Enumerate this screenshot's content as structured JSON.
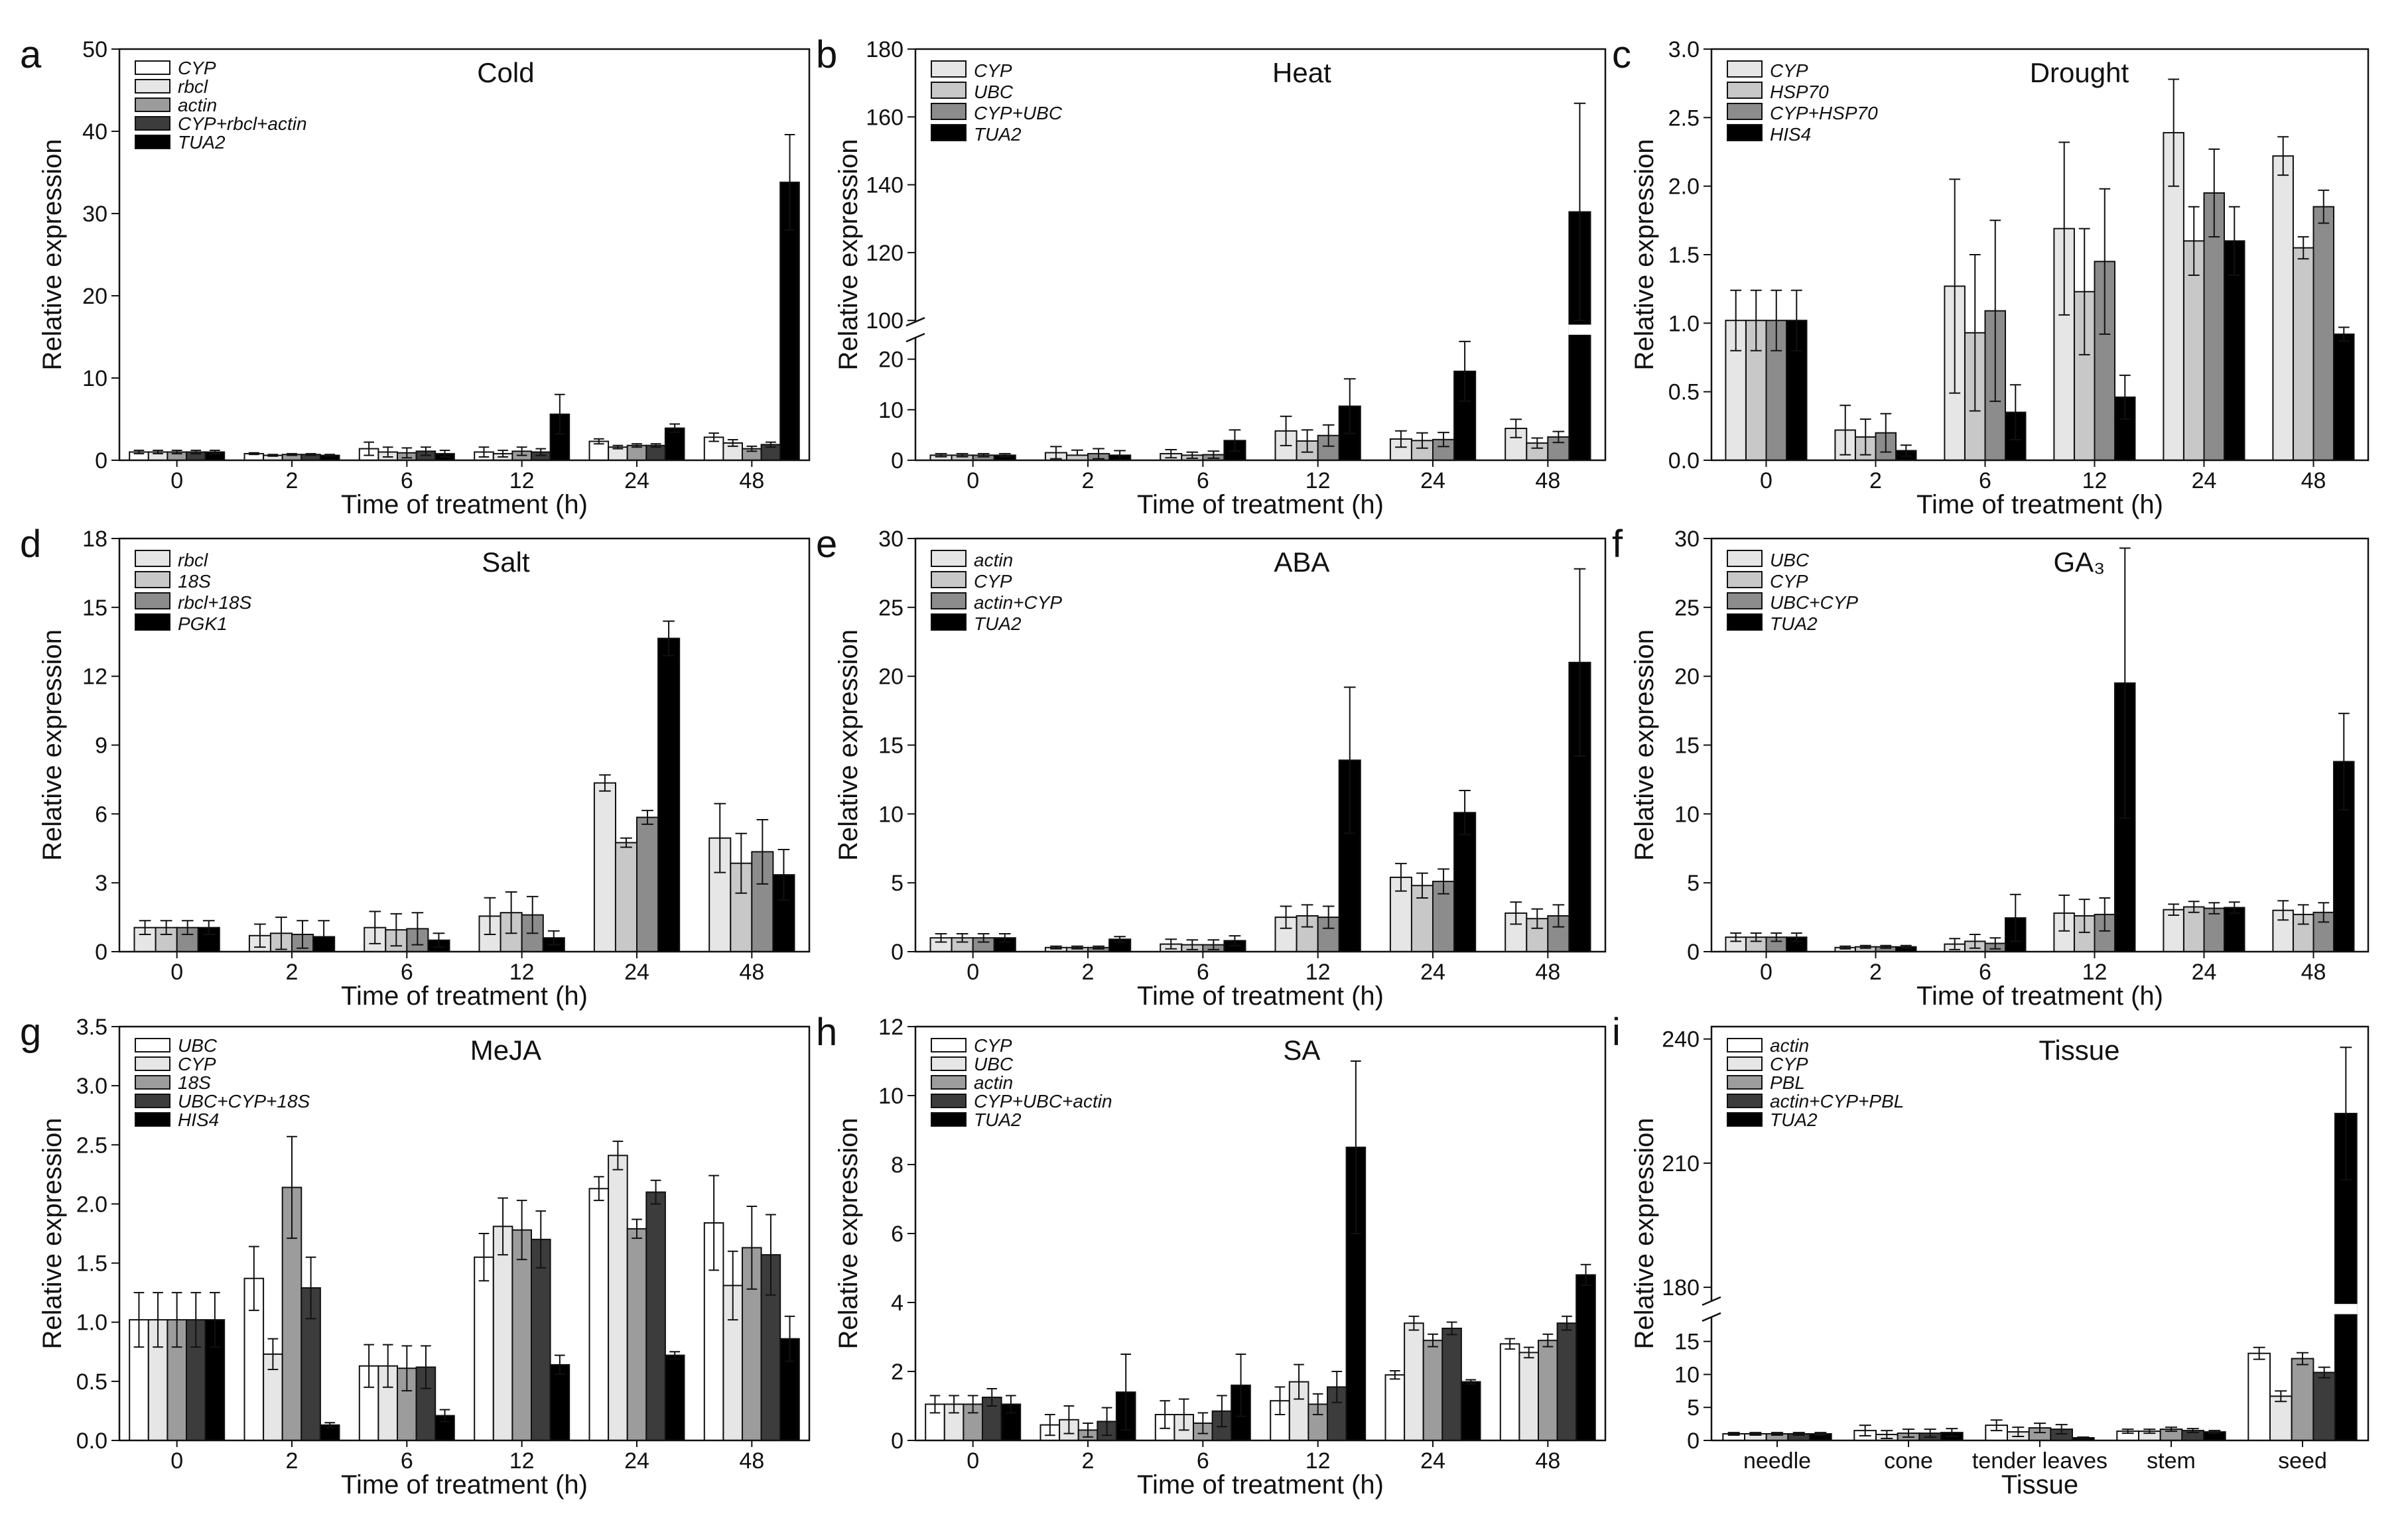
{
  "figure_title": "",
  "colors": {
    "white": "#ffffff",
    "light": "#e6e6e6",
    "mid_light": "#c8c8c8",
    "mid": "#8c8c8c",
    "dark": "#3c3c3c",
    "black": "#000000"
  },
  "chart_data": [
    {
      "label": "a",
      "title": "Cold",
      "type": "bar",
      "xlabel": "Time of treatment (h)",
      "ylabel": "Relative expression",
      "categories": [
        "0",
        "2",
        "6",
        "12",
        "24",
        "48"
      ],
      "yticks": [
        0,
        10,
        20,
        30,
        40,
        50
      ],
      "ylim": [
        0,
        50
      ],
      "legend": [
        "CYP",
        "rbcl",
        "actin",
        "CYP+rbcl+actin",
        "TUA2"
      ],
      "fills": [
        "#ffffff",
        "#e6e6e6",
        "#9c9c9c",
        "#3c3c3c",
        "#000000"
      ],
      "series": [
        {
          "name": "CYP",
          "values": [
            1.0,
            0.8,
            1.4,
            1.0,
            2.3,
            2.8
          ],
          "errors": [
            0.2,
            0.1,
            0.8,
            0.6,
            0.3,
            0.5
          ]
        },
        {
          "name": "rbcl",
          "values": [
            1.0,
            0.6,
            1.0,
            0.8,
            1.6,
            2.1
          ],
          "errors": [
            0.2,
            0.1,
            0.6,
            0.4,
            0.2,
            0.4
          ]
        },
        {
          "name": "actin",
          "values": [
            1.0,
            0.7,
            0.9,
            1.1,
            1.8,
            1.4
          ],
          "errors": [
            0.2,
            0.1,
            0.6,
            0.5,
            0.2,
            0.3
          ]
        },
        {
          "name": "CYP+rbcl+actin",
          "values": [
            1.0,
            0.7,
            1.1,
            1.0,
            1.8,
            1.9
          ],
          "errors": [
            0.2,
            0.1,
            0.5,
            0.4,
            0.2,
            0.3
          ]
        },
        {
          "name": "TUA2",
          "values": [
            1.0,
            0.6,
            0.8,
            5.6,
            3.9,
            33.8
          ],
          "errors": [
            0.2,
            0.1,
            0.4,
            2.4,
            0.5,
            5.8
          ]
        }
      ]
    },
    {
      "label": "b",
      "title": "Heat",
      "type": "bar",
      "xlabel": "Time of treatment (h)",
      "ylabel": "Relative expression",
      "categories": [
        "0",
        "2",
        "6",
        "12",
        "24",
        "48"
      ],
      "yticks": [
        0,
        10,
        20,
        100,
        120,
        140,
        160,
        180
      ],
      "broken_axis": {
        "lower": [
          0,
          24
        ],
        "upper": [
          100,
          180
        ]
      },
      "legend": [
        "CYP",
        "UBC",
        "CYP+UBC",
        "TUA2"
      ],
      "fills": [
        "#e6e6e6",
        "#c8c8c8",
        "#8c8c8c",
        "#000000"
      ],
      "series": [
        {
          "name": "CYP",
          "values": [
            1.0,
            1.5,
            1.3,
            5.8,
            4.2,
            6.3
          ],
          "errors": [
            0.3,
            1.2,
            0.8,
            2.9,
            1.6,
            1.8
          ]
        },
        {
          "name": "UBC",
          "values": [
            1.0,
            1.0,
            1.0,
            3.8,
            3.9,
            3.4
          ],
          "errors": [
            0.3,
            1.0,
            0.6,
            2.2,
            1.5,
            1.0
          ]
        },
        {
          "name": "CYP+UBC",
          "values": [
            1.0,
            1.3,
            1.1,
            4.9,
            4.1,
            4.6
          ],
          "errors": [
            0.3,
            1.0,
            0.7,
            2.1,
            1.4,
            1.1
          ]
        },
        {
          "name": "TUA2",
          "values": [
            1.0,
            1.0,
            3.9,
            10.7,
            17.6,
            132
          ],
          "errors": [
            0.3,
            0.9,
            2.1,
            5.4,
            5.9,
            32
          ]
        }
      ]
    },
    {
      "label": "c",
      "title": "Drought",
      "type": "bar",
      "xlabel": "Time of treatment (h)",
      "ylabel": "Relative expression",
      "categories": [
        "0",
        "2",
        "6",
        "12",
        "24",
        "48"
      ],
      "yticks": [
        0,
        0.5,
        1.0,
        1.5,
        2.0,
        2.5,
        3.0
      ],
      "ylim": [
        0,
        3.0
      ],
      "legend": [
        "CYP",
        "HSP70",
        "CYP+HSP70",
        "HIS4"
      ],
      "fills": [
        "#e6e6e6",
        "#c8c8c8",
        "#8c8c8c",
        "#000000"
      ],
      "series": [
        {
          "name": "CYP",
          "values": [
            1.02,
            0.22,
            1.27,
            1.69,
            2.39,
            2.22
          ],
          "errors": [
            0.22,
            0.18,
            0.78,
            0.63,
            0.39,
            0.14
          ]
        },
        {
          "name": "HSP70",
          "values": [
            1.02,
            0.17,
            0.93,
            1.23,
            1.6,
            1.55
          ],
          "errors": [
            0.22,
            0.13,
            0.57,
            0.46,
            0.25,
            0.08
          ]
        },
        {
          "name": "CYP+HSP70",
          "values": [
            1.02,
            0.2,
            1.09,
            1.45,
            1.95,
            1.85
          ],
          "errors": [
            0.22,
            0.14,
            0.66,
            0.53,
            0.32,
            0.12
          ]
        },
        {
          "name": "HIS4",
          "values": [
            1.02,
            0.07,
            0.35,
            0.46,
            1.6,
            0.92
          ],
          "errors": [
            0.22,
            0.04,
            0.2,
            0.16,
            0.25,
            0.05
          ]
        }
      ]
    },
    {
      "label": "d",
      "title": "Salt",
      "type": "bar",
      "xlabel": "Time of treatment (h)",
      "ylabel": "Relative expression",
      "categories": [
        "0",
        "2",
        "6",
        "12",
        "24",
        "48"
      ],
      "yticks": [
        0,
        3,
        6,
        9,
        12,
        15,
        18
      ],
      "ylim": [
        0,
        18
      ],
      "legend": [
        "rbcl",
        "18S",
        "rbcl+18S",
        "PGK1"
      ],
      "fills": [
        "#e6e6e6",
        "#c8c8c8",
        "#8c8c8c",
        "#000000"
      ],
      "series": [
        {
          "name": "rbcl",
          "values": [
            1.05,
            0.7,
            1.05,
            1.55,
            7.35,
            4.95
          ],
          "errors": [
            0.3,
            0.5,
            0.7,
            0.8,
            0.35,
            1.5
          ]
        },
        {
          "name": "18S",
          "values": [
            1.05,
            0.8,
            0.95,
            1.7,
            4.75,
            3.85
          ],
          "errors": [
            0.3,
            0.7,
            0.7,
            0.9,
            0.2,
            1.3
          ]
        },
        {
          "name": "rbcl+18S",
          "values": [
            1.05,
            0.75,
            1.0,
            1.6,
            5.85,
            4.35
          ],
          "errors": [
            0.3,
            0.6,
            0.7,
            0.8,
            0.3,
            1.4
          ]
        },
        {
          "name": "PGK1",
          "values": [
            1.05,
            0.65,
            0.5,
            0.6,
            13.65,
            3.35
          ],
          "errors": [
            0.3,
            0.7,
            0.3,
            0.3,
            0.75,
            1.1
          ]
        }
      ]
    },
    {
      "label": "e",
      "title": "ABA",
      "type": "bar",
      "xlabel": "Time of treatment (h)",
      "ylabel": "Relative expression",
      "categories": [
        "0",
        "2",
        "6",
        "12",
        "24",
        "48"
      ],
      "yticks": [
        0,
        5,
        10,
        15,
        20,
        25,
        30
      ],
      "ylim": [
        0,
        30
      ],
      "legend": [
        "actin",
        "CYP",
        "actin+CYP",
        "TUA2"
      ],
      "fills": [
        "#e6e6e6",
        "#c8c8c8",
        "#8c8c8c",
        "#000000"
      ],
      "series": [
        {
          "name": "actin",
          "values": [
            1.0,
            0.3,
            0.55,
            2.5,
            5.4,
            2.8
          ],
          "errors": [
            0.3,
            0.1,
            0.35,
            0.8,
            1.0,
            0.8
          ]
        },
        {
          "name": "CYP",
          "values": [
            1.0,
            0.3,
            0.5,
            2.6,
            4.8,
            2.4
          ],
          "errors": [
            0.3,
            0.1,
            0.35,
            0.8,
            0.9,
            0.7
          ]
        },
        {
          "name": "actin+CYP",
          "values": [
            1.0,
            0.3,
            0.5,
            2.5,
            5.1,
            2.6
          ],
          "errors": [
            0.3,
            0.1,
            0.35,
            0.8,
            0.9,
            0.8
          ]
        },
        {
          "name": "TUA2",
          "values": [
            1.0,
            0.9,
            0.8,
            13.9,
            10.1,
            21.0
          ],
          "errors": [
            0.3,
            0.2,
            0.35,
            5.3,
            1.6,
            6.8
          ]
        }
      ]
    },
    {
      "label": "f",
      "title": "GA₃",
      "type": "bar",
      "xlabel": "Time of treatment (h)",
      "ylabel": "Relative expression",
      "categories": [
        "0",
        "2",
        "6",
        "12",
        "24",
        "48"
      ],
      "yticks": [
        0,
        5,
        10,
        15,
        20,
        25,
        30
      ],
      "ylim": [
        0,
        30
      ],
      "legend": [
        "UBC",
        "CYP",
        "UBC+CYP",
        "TUA2"
      ],
      "fills": [
        "#e6e6e6",
        "#c8c8c8",
        "#8c8c8c",
        "#000000"
      ],
      "series": [
        {
          "name": "UBC",
          "values": [
            1.05,
            0.3,
            0.55,
            2.8,
            3.05,
            3.0
          ],
          "errors": [
            0.3,
            0.1,
            0.4,
            1.3,
            0.4,
            0.7
          ]
        },
        {
          "name": "CYP",
          "values": [
            1.05,
            0.35,
            0.75,
            2.6,
            3.25,
            2.7
          ],
          "errors": [
            0.3,
            0.1,
            0.5,
            1.2,
            0.4,
            0.7
          ]
        },
        {
          "name": "UBC+CYP",
          "values": [
            1.05,
            0.35,
            0.6,
            2.7,
            3.15,
            2.85
          ],
          "errors": [
            0.3,
            0.1,
            0.4,
            1.2,
            0.4,
            0.7
          ]
        },
        {
          "name": "TUA2",
          "values": [
            1.05,
            0.35,
            2.45,
            19.5,
            3.2,
            13.8
          ],
          "errors": [
            0.3,
            0.1,
            1.7,
            9.8,
            0.4,
            3.5
          ]
        }
      ]
    },
    {
      "label": "g",
      "title": "MeJA",
      "type": "bar",
      "xlabel": "Time of treatment (h)",
      "ylabel": "Relative expression",
      "categories": [
        "0",
        "2",
        "6",
        "12",
        "24",
        "48"
      ],
      "yticks": [
        0,
        0.5,
        1.0,
        1.5,
        2.0,
        2.5,
        3.0,
        3.5
      ],
      "ylim": [
        0,
        3.5
      ],
      "legend": [
        "UBC",
        "CYP",
        "18S",
        "UBC+CYP+18S",
        "HIS4"
      ],
      "fills": [
        "#ffffff",
        "#e6e6e6",
        "#9c9c9c",
        "#3c3c3c",
        "#000000"
      ],
      "series": [
        {
          "name": "UBC",
          "values": [
            1.02,
            1.37,
            0.63,
            1.55,
            2.13,
            1.84
          ],
          "errors": [
            0.23,
            0.27,
            0.18,
            0.2,
            0.1,
            0.4
          ]
        },
        {
          "name": "CYP",
          "values": [
            1.02,
            0.73,
            0.63,
            1.81,
            2.41,
            1.31
          ],
          "errors": [
            0.23,
            0.13,
            0.18,
            0.24,
            0.12,
            0.29
          ]
        },
        {
          "name": "18S",
          "values": [
            1.02,
            2.14,
            0.61,
            1.78,
            1.79,
            1.63
          ],
          "errors": [
            0.23,
            0.43,
            0.19,
            0.25,
            0.08,
            0.35
          ]
        },
        {
          "name": "UBC+CYP+18S",
          "values": [
            1.02,
            1.29,
            0.62,
            1.7,
            2.1,
            1.57
          ],
          "errors": [
            0.23,
            0.26,
            0.18,
            0.24,
            0.1,
            0.34
          ]
        },
        {
          "name": "HIS4",
          "values": [
            1.02,
            0.13,
            0.21,
            0.64,
            0.72,
            0.86
          ],
          "errors": [
            0.23,
            0.02,
            0.05,
            0.08,
            0.03,
            0.19
          ]
        }
      ]
    },
    {
      "label": "h",
      "title": "SA",
      "type": "bar",
      "xlabel": "Time of treatment (h)",
      "ylabel": "Relative expression",
      "categories": [
        "0",
        "2",
        "6",
        "12",
        "24",
        "48"
      ],
      "yticks": [
        0,
        2,
        4,
        6,
        8,
        10,
        12
      ],
      "ylim": [
        0,
        12
      ],
      "legend": [
        "CYP",
        "UBC",
        "actin",
        "CYP+UBC+actin",
        "TUA2"
      ],
      "fills": [
        "#ffffff",
        "#e6e6e6",
        "#9c9c9c",
        "#3c3c3c",
        "#000000"
      ],
      "series": [
        {
          "name": "CYP",
          "values": [
            1.05,
            0.45,
            0.75,
            1.15,
            1.9,
            2.8
          ],
          "errors": [
            0.25,
            0.3,
            0.4,
            0.4,
            0.12,
            0.15
          ]
        },
        {
          "name": "UBC",
          "values": [
            1.05,
            0.6,
            0.75,
            1.7,
            3.4,
            2.55
          ],
          "errors": [
            0.25,
            0.4,
            0.45,
            0.5,
            0.2,
            0.15
          ]
        },
        {
          "name": "actin",
          "values": [
            1.05,
            0.3,
            0.5,
            1.05,
            2.9,
            2.9
          ],
          "errors": [
            0.25,
            0.2,
            0.3,
            0.3,
            0.18,
            0.18
          ]
        },
        {
          "name": "CYP+UBC+actin",
          "values": [
            1.25,
            0.55,
            0.85,
            1.55,
            3.25,
            3.4
          ],
          "errors": [
            0.25,
            0.4,
            0.45,
            0.45,
            0.18,
            0.2
          ]
        },
        {
          "name": "TUA2",
          "values": [
            1.05,
            1.4,
            1.6,
            8.5,
            1.7,
            4.8
          ],
          "errors": [
            0.25,
            1.1,
            0.9,
            2.5,
            0.06,
            0.3
          ]
        }
      ]
    },
    {
      "label": "i",
      "title": "Tissue",
      "type": "bar",
      "xlabel": "Tissue",
      "ylabel": "Relative expression",
      "categories": [
        "needle",
        "cone",
        "tender leaves",
        "stem",
        "seed"
      ],
      "yticks": [
        0,
        5,
        10,
        15,
        180,
        210,
        240
      ],
      "broken_axis": {
        "lower": [
          0,
          18.5
        ],
        "upper": [
          177,
          243
        ]
      },
      "legend": [
        "actin",
        "CYP",
        "PBL",
        "actin+CYP+PBL",
        "TUA2"
      ],
      "fills": [
        "#ffffff",
        "#e6e6e6",
        "#9c9c9c",
        "#3c3c3c",
        "#000000"
      ],
      "series": [
        {
          "name": "actin",
          "values": [
            1.0,
            1.5,
            2.3,
            1.4,
            13.2
          ],
          "errors": [
            0.2,
            0.8,
            0.8,
            0.3,
            0.9
          ]
        },
        {
          "name": "CYP",
          "values": [
            1.0,
            0.9,
            1.3,
            1.4,
            6.7
          ],
          "errors": [
            0.2,
            0.6,
            0.7,
            0.3,
            0.8
          ]
        },
        {
          "name": "PBL",
          "values": [
            1.0,
            1.1,
            1.9,
            1.7,
            12.4
          ],
          "errors": [
            0.2,
            0.6,
            0.7,
            0.3,
            0.9
          ]
        },
        {
          "name": "actin+CYP+PBL",
          "values": [
            1.0,
            1.1,
            1.7,
            1.5,
            10.3
          ],
          "errors": [
            0.2,
            0.6,
            0.7,
            0.3,
            0.8
          ]
        },
        {
          "name": "TUA2",
          "values": [
            1.0,
            1.2,
            0.4,
            1.3,
            222
          ],
          "errors": [
            0.2,
            0.6,
            0.1,
            0.2,
            16
          ]
        }
      ]
    }
  ]
}
